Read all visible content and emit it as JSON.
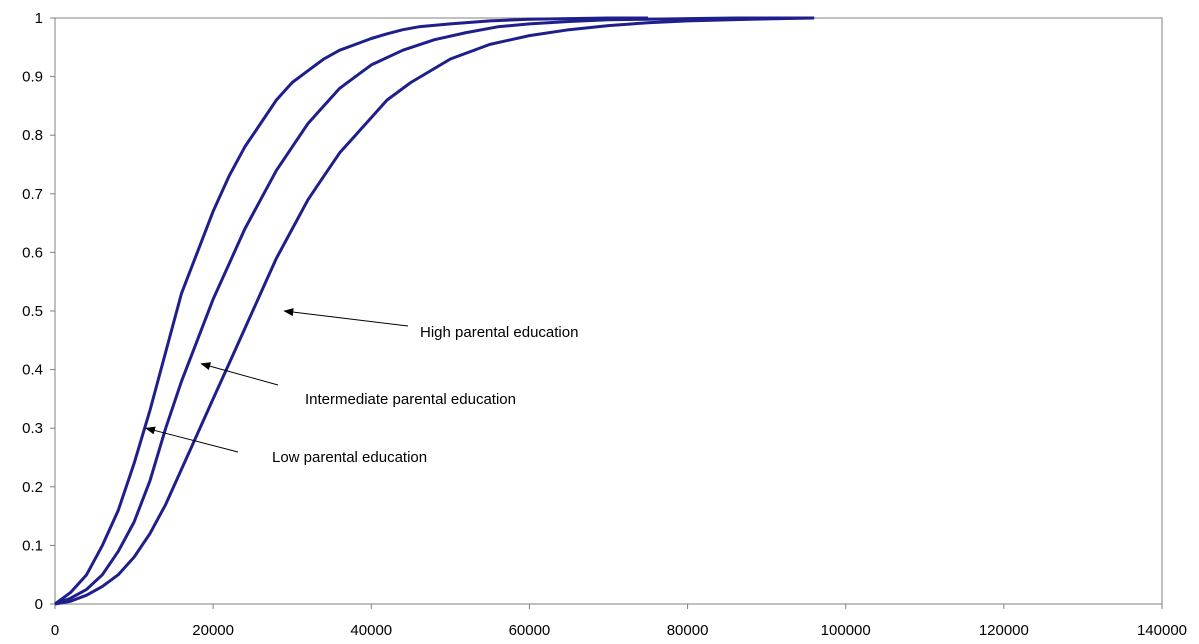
{
  "chart_data": {
    "type": "line",
    "title": "",
    "xlabel": "",
    "ylabel": "",
    "xlim": [
      0,
      140000
    ],
    "ylim": [
      0,
      1
    ],
    "x_ticks": [
      "0",
      "20000",
      "40000",
      "60000",
      "80000",
      "100000",
      "120000",
      "140000"
    ],
    "y_ticks": [
      "0",
      "0.1",
      "0.2",
      "0.3",
      "0.4",
      "0.5",
      "0.6",
      "0.7",
      "0.8",
      "0.9",
      "1"
    ],
    "grid": false,
    "legend": "none",
    "line_color": "#1f1f8c",
    "series": [
      {
        "key": "low",
        "x": [
          0,
          2000,
          4000,
          6000,
          8000,
          10000,
          12000,
          14000,
          16000,
          18000,
          20000,
          22000,
          24000,
          26000,
          28000,
          30000,
          32000,
          34000,
          36000,
          38000,
          40000,
          42000,
          44000,
          46000,
          50000,
          55000,
          60000,
          65000,
          70000,
          75000
        ],
        "y": [
          0,
          0.02,
          0.05,
          0.1,
          0.16,
          0.24,
          0.33,
          0.43,
          0.53,
          0.6,
          0.67,
          0.73,
          0.78,
          0.82,
          0.86,
          0.89,
          0.91,
          0.93,
          0.945,
          0.955,
          0.965,
          0.973,
          0.98,
          0.985,
          0.99,
          0.995,
          0.998,
          0.999,
          1,
          1
        ]
      },
      {
        "key": "intermediate",
        "x": [
          0,
          2000,
          4000,
          6000,
          8000,
          10000,
          12000,
          14000,
          16000,
          18000,
          20000,
          22000,
          24000,
          26000,
          28000,
          30000,
          32000,
          34000,
          36000,
          38000,
          40000,
          44000,
          48000,
          52000,
          56000,
          60000,
          65000,
          70000,
          75000,
          80000,
          86000,
          96000
        ],
        "y": [
          0,
          0.01,
          0.025,
          0.05,
          0.09,
          0.14,
          0.21,
          0.3,
          0.38,
          0.45,
          0.52,
          0.58,
          0.64,
          0.69,
          0.74,
          0.78,
          0.82,
          0.85,
          0.88,
          0.9,
          0.92,
          0.945,
          0.963,
          0.975,
          0.985,
          0.99,
          0.994,
          0.997,
          0.998,
          0.999,
          1,
          1
        ]
      },
      {
        "key": "high",
        "x": [
          0,
          2000,
          4000,
          6000,
          8000,
          10000,
          12000,
          14000,
          16000,
          18000,
          20000,
          22000,
          24000,
          26000,
          28000,
          30000,
          32000,
          34000,
          36000,
          38000,
          40000,
          42000,
          45000,
          50000,
          55000,
          60000,
          65000,
          70000,
          75000,
          80000,
          88000,
          96000
        ],
        "y": [
          0,
          0.005,
          0.015,
          0.03,
          0.05,
          0.08,
          0.12,
          0.17,
          0.23,
          0.29,
          0.35,
          0.41,
          0.47,
          0.53,
          0.59,
          0.64,
          0.69,
          0.73,
          0.77,
          0.8,
          0.83,
          0.86,
          0.89,
          0.93,
          0.955,
          0.97,
          0.98,
          0.987,
          0.992,
          0.995,
          0.998,
          1
        ]
      }
    ],
    "annotations": [
      {
        "text": "High parental education",
        "arrow_x": 29000,
        "arrow_y": 0.5
      },
      {
        "text": "Intermediate parental education",
        "arrow_x": 18500,
        "arrow_y": 0.41
      },
      {
        "text": "Low parental education",
        "arrow_x": 11500,
        "arrow_y": 0.3
      }
    ]
  }
}
